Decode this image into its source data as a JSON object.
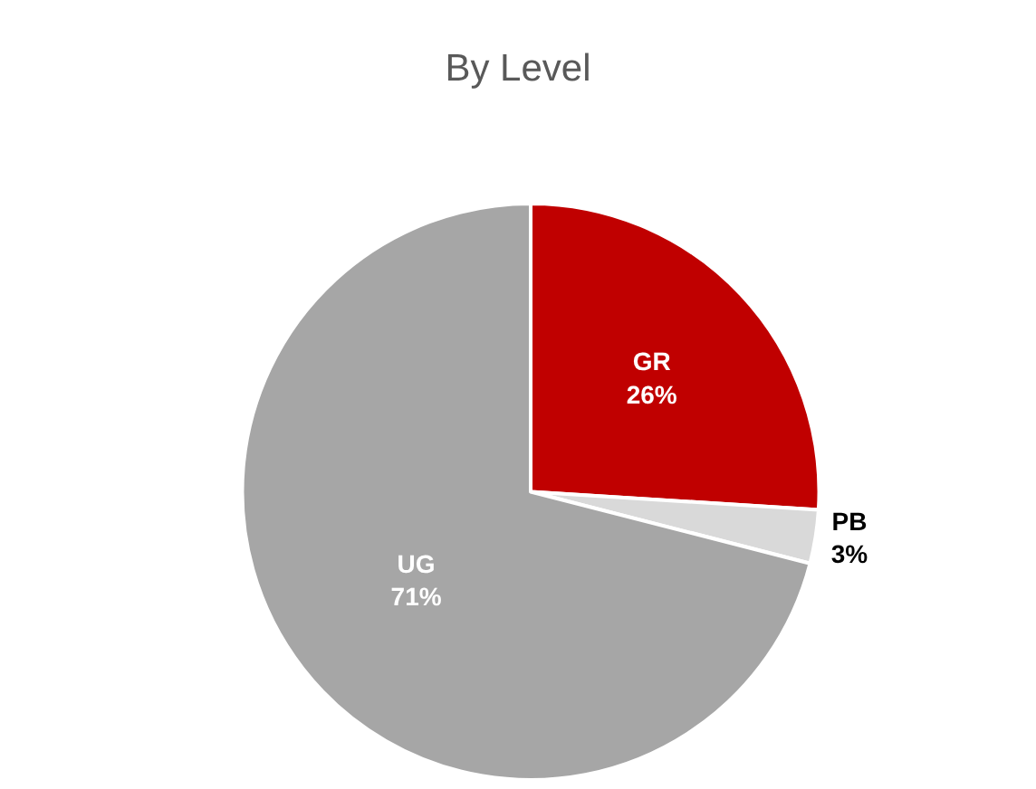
{
  "chart_data": {
    "type": "pie",
    "title": "By Level",
    "categories": [
      "GR",
      "PB",
      "UG"
    ],
    "values": [
      26,
      3,
      71
    ],
    "value_labels": [
      "26%",
      "3%",
      "71%"
    ],
    "colors": [
      "#c00000",
      "#d9d9d9",
      "#a6a6a6"
    ],
    "legend": false
  }
}
